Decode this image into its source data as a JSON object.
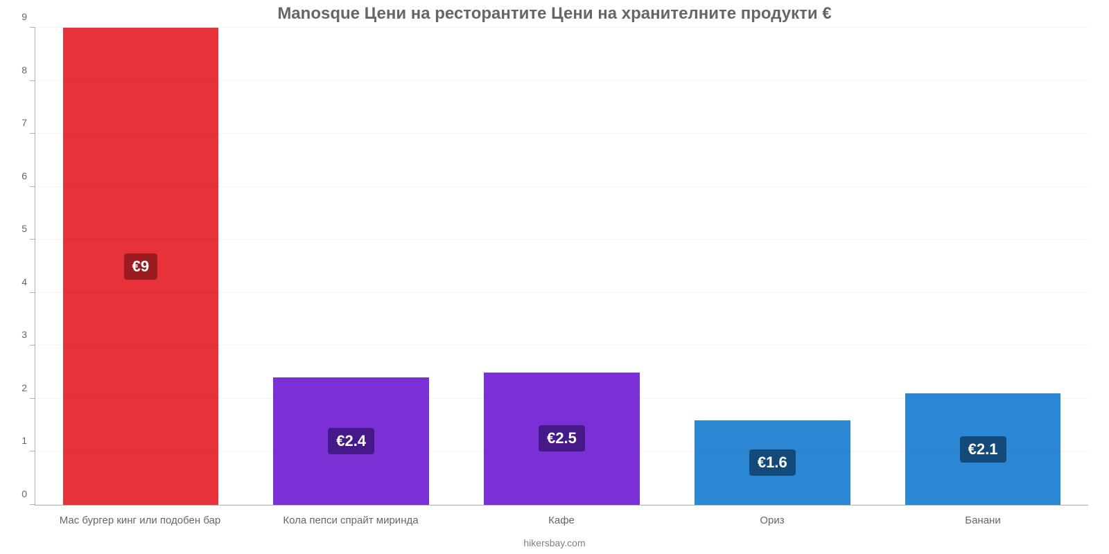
{
  "chart": {
    "type": "bar",
    "title": "Manosque Цени на ресторантите Цени на хранителните продукти €",
    "title_fontsize": 24,
    "title_color": "#666666",
    "footer": "hikersbay.com",
    "footer_color": "#808080",
    "background_color": "#ffffff",
    "axis_color": "#b0b0b0",
    "grid_color": "rgba(0,0,0,0.04)",
    "tick_label_color": "#666666",
    "tick_label_fontsize": 14,
    "x_label_fontsize": 15,
    "value_label_color": "#ffffff",
    "value_label_fontsize": 22,
    "ylim": [
      0,
      9
    ],
    "yticks": [
      0,
      1,
      2,
      3,
      4,
      5,
      6,
      7,
      8,
      9
    ],
    "bar_width": 0.74,
    "categories": [
      "Мас бургер кинг или подобен бар",
      "Кола пепси спрайт миринда",
      "Кафе",
      "Ориз",
      "Банани"
    ],
    "values": [
      9,
      2.4,
      2.5,
      1.6,
      2.1
    ],
    "value_labels": [
      "€9",
      "€2.4",
      "€2.5",
      "€1.6",
      "€2.1"
    ],
    "bar_colors": [
      "#e8323a",
      "#7b30d6",
      "#7b30d6",
      "#2b87d3",
      "#2b87d3"
    ],
    "badge_colors": [
      "#9a1c20",
      "#45198a",
      "#45198a",
      "#134a7a",
      "#134a7a"
    ]
  }
}
